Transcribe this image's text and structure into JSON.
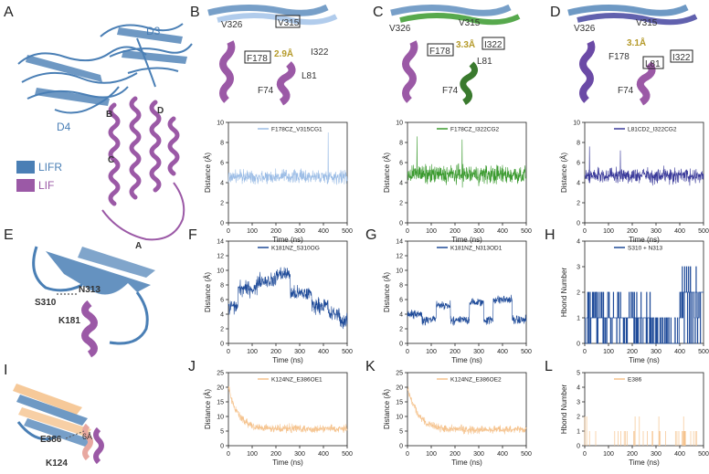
{
  "panels": {
    "A": {
      "letter": "A",
      "labels": {
        "d3": "D3",
        "d4": "D4",
        "b": "B",
        "c": "C",
        "d": "D",
        "a": "A"
      },
      "legend": [
        {
          "name": "LIFR",
          "color": "#4a7fb5"
        },
        {
          "name": "LIF",
          "color": "#9b59a6"
        }
      ]
    },
    "B": {
      "letter": "B",
      "labels": [
        "V326",
        "V315",
        "F178",
        "2.9Å",
        "I322",
        "L81",
        "F74"
      ]
    },
    "C": {
      "letter": "C",
      "labels": [
        "V326",
        "V315",
        "F178",
        "3.3Å",
        "I322",
        "L81",
        "F74"
      ]
    },
    "D": {
      "letter": "D",
      "labels": [
        "V326",
        "V315",
        "F178",
        "3.1Å",
        "L81",
        "I322",
        "F74"
      ]
    },
    "E": {
      "letter": "E",
      "labels": [
        "S310",
        "N313",
        "K181"
      ]
    },
    "I": {
      "letter": "I",
      "labels": [
        "E386",
        "6Å",
        "K124"
      ]
    }
  },
  "chart_data": [
    {
      "id": "B",
      "letter": "B",
      "type": "line",
      "series": [
        {
          "name": "F178CZ_V315CG1",
          "color": "#9cbde6"
        }
      ],
      "xlabel": "Time (ns)",
      "ylabel": "Distance (Å)",
      "xlim": [
        0,
        500
      ],
      "ylim": [
        0,
        10
      ],
      "xticks": [
        0,
        100,
        200,
        300,
        400,
        500
      ],
      "yticks": [
        0,
        2,
        4,
        6,
        8,
        10
      ],
      "base": 4.6,
      "noise": 1.0,
      "spikes": [
        [
          420,
          9.0
        ]
      ]
    },
    {
      "id": "C",
      "letter": "C",
      "type": "line",
      "series": [
        {
          "name": "F178CZ_I322CG2",
          "color": "#3a9a2e"
        }
      ],
      "xlabel": "Time (ns)",
      "ylabel": "Distance (Å)",
      "xlim": [
        0,
        500
      ],
      "ylim": [
        0,
        10
      ],
      "xticks": [
        0,
        100,
        200,
        300,
        400,
        500
      ],
      "yticks": [
        0,
        2,
        4,
        6,
        8,
        10
      ],
      "base": 4.8,
      "noise": 1.4,
      "spikes": [
        [
          40,
          8.6
        ],
        [
          230,
          8.3
        ]
      ]
    },
    {
      "id": "D",
      "letter": "D",
      "type": "line",
      "series": [
        {
          "name": "L81CD2_I322CG2",
          "color": "#3a3a9a"
        }
      ],
      "xlabel": "Time (ns)",
      "ylabel": "Distance (Å)",
      "xlim": [
        0,
        500
      ],
      "ylim": [
        0,
        10
      ],
      "xticks": [
        0,
        100,
        200,
        300,
        400,
        500
      ],
      "yticks": [
        0,
        2,
        4,
        6,
        8,
        10
      ],
      "base": 4.7,
      "noise": 1.1,
      "spikes": [
        [
          20,
          7.6
        ],
        [
          150,
          7.2
        ]
      ]
    },
    {
      "id": "F",
      "letter": "F",
      "type": "line",
      "series": [
        {
          "name": "K181NZ_S310OG",
          "color": "#1f4b99"
        }
      ],
      "xlabel": "Time (ns)",
      "ylabel": "Distance (Å)",
      "xlim": [
        0,
        500
      ],
      "ylim": [
        0,
        14
      ],
      "xticks": [
        0,
        100,
        200,
        300,
        400,
        500
      ],
      "yticks": [
        0,
        2,
        4,
        6,
        8,
        10,
        12,
        14
      ],
      "segments": [
        [
          0,
          40,
          5.0
        ],
        [
          40,
          120,
          7.5
        ],
        [
          120,
          200,
          8.6
        ],
        [
          200,
          260,
          9.5
        ],
        [
          260,
          350,
          6.8
        ],
        [
          350,
          420,
          5.2
        ],
        [
          420,
          470,
          4.0
        ],
        [
          470,
          500,
          3.0
        ]
      ],
      "noise": 1.5
    },
    {
      "id": "G",
      "letter": "G",
      "type": "line",
      "series": [
        {
          "name": "K181NZ_N313OD1",
          "color": "#1f4b99"
        }
      ],
      "xlabel": "Time (ns)",
      "ylabel": "Distance (Å)",
      "xlim": [
        0,
        500
      ],
      "ylim": [
        0,
        14
      ],
      "xticks": [
        0,
        100,
        200,
        300,
        400,
        500
      ],
      "yticks": [
        0,
        2,
        4,
        6,
        8,
        10,
        12,
        14
      ],
      "segments": [
        [
          0,
          60,
          4.0
        ],
        [
          60,
          120,
          3.2
        ],
        [
          120,
          180,
          5.2
        ],
        [
          180,
          260,
          3.2
        ],
        [
          260,
          320,
          5.6
        ],
        [
          320,
          360,
          3.2
        ],
        [
          360,
          440,
          6.0
        ],
        [
          440,
          500,
          3.2
        ]
      ],
      "noise": 0.9
    },
    {
      "id": "H",
      "letter": "H",
      "type": "step",
      "series": [
        {
          "name": "S310 + N313",
          "color": "#1f4b99"
        }
      ],
      "xlabel": "Time (ns)",
      "ylabel": "Hbond Number",
      "xlim": [
        0,
        500
      ],
      "ylim": [
        0,
        4
      ],
      "xticks": [
        0,
        100,
        200,
        300,
        400,
        500
      ],
      "yticks": [
        0,
        1,
        2,
        3,
        4
      ]
    },
    {
      "id": "J",
      "letter": "J",
      "type": "line",
      "series": [
        {
          "name": "K124NZ_E386OE1",
          "color": "#f5c38e"
        }
      ],
      "xlabel": "Time (ns)",
      "ylabel": "Distance (Å)",
      "xlim": [
        0,
        500
      ],
      "ylim": [
        0,
        25
      ],
      "xticks": [
        0,
        100,
        200,
        300,
        400,
        500
      ],
      "yticks": [
        0,
        5,
        10,
        15,
        20,
        25
      ],
      "decay": [
        20,
        5.8,
        40
      ],
      "noise": 2.0
    },
    {
      "id": "K",
      "letter": "K",
      "type": "line",
      "series": [
        {
          "name": "K124NZ_E386OE2",
          "color": "#f5c38e"
        }
      ],
      "xlabel": "Time (ns)",
      "ylabel": "Distance (Å)",
      "xlim": [
        0,
        500
      ],
      "ylim": [
        0,
        25
      ],
      "xticks": [
        0,
        100,
        200,
        300,
        400,
        500
      ],
      "yticks": [
        0,
        5,
        10,
        15,
        20,
        25
      ],
      "decay": [
        20,
        5.5,
        45
      ],
      "noise": 2.0
    },
    {
      "id": "L",
      "letter": "L",
      "type": "spikes",
      "series": [
        {
          "name": "E386",
          "color": "#f5c38e"
        }
      ],
      "xlabel": "Time (ns)",
      "ylabel": "Hbond Number",
      "xlim": [
        0,
        500
      ],
      "ylim": [
        0,
        5
      ],
      "xticks": [
        0,
        100,
        200,
        300,
        400,
        500
      ],
      "yticks": [
        0,
        1,
        2,
        3,
        4,
        5
      ]
    }
  ]
}
